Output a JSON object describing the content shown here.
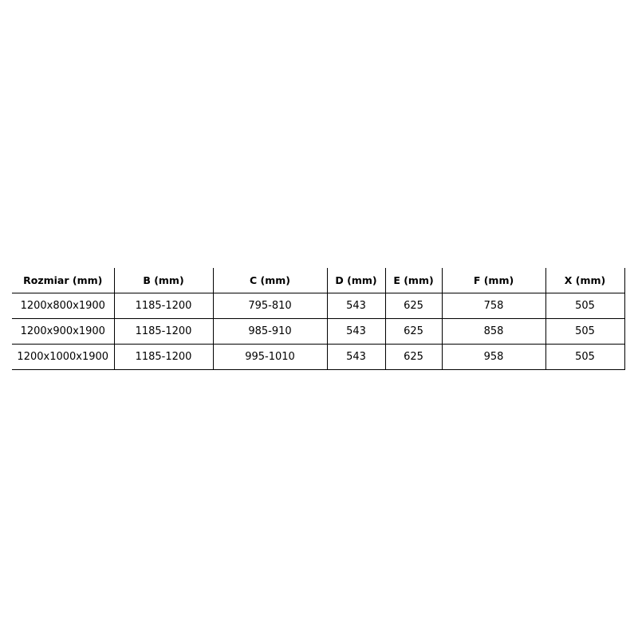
{
  "table": {
    "headers": [
      "Rozmiar (mm)",
      "B (mm)",
      "C (mm)",
      "D (mm)",
      "E (mm)",
      "F (mm)",
      "X (mm)"
    ],
    "rows": [
      [
        "1200x800x1900",
        "1185-1200",
        "795-810",
        "543",
        "625",
        "758",
        "505"
      ],
      [
        "1200x900x1900",
        "1185-1200",
        "985-910",
        "543",
        "625",
        "858",
        "505"
      ],
      [
        "1200x1000x1900",
        "1185-1200",
        "995-1010",
        "543",
        "625",
        "958",
        "505"
      ]
    ]
  }
}
